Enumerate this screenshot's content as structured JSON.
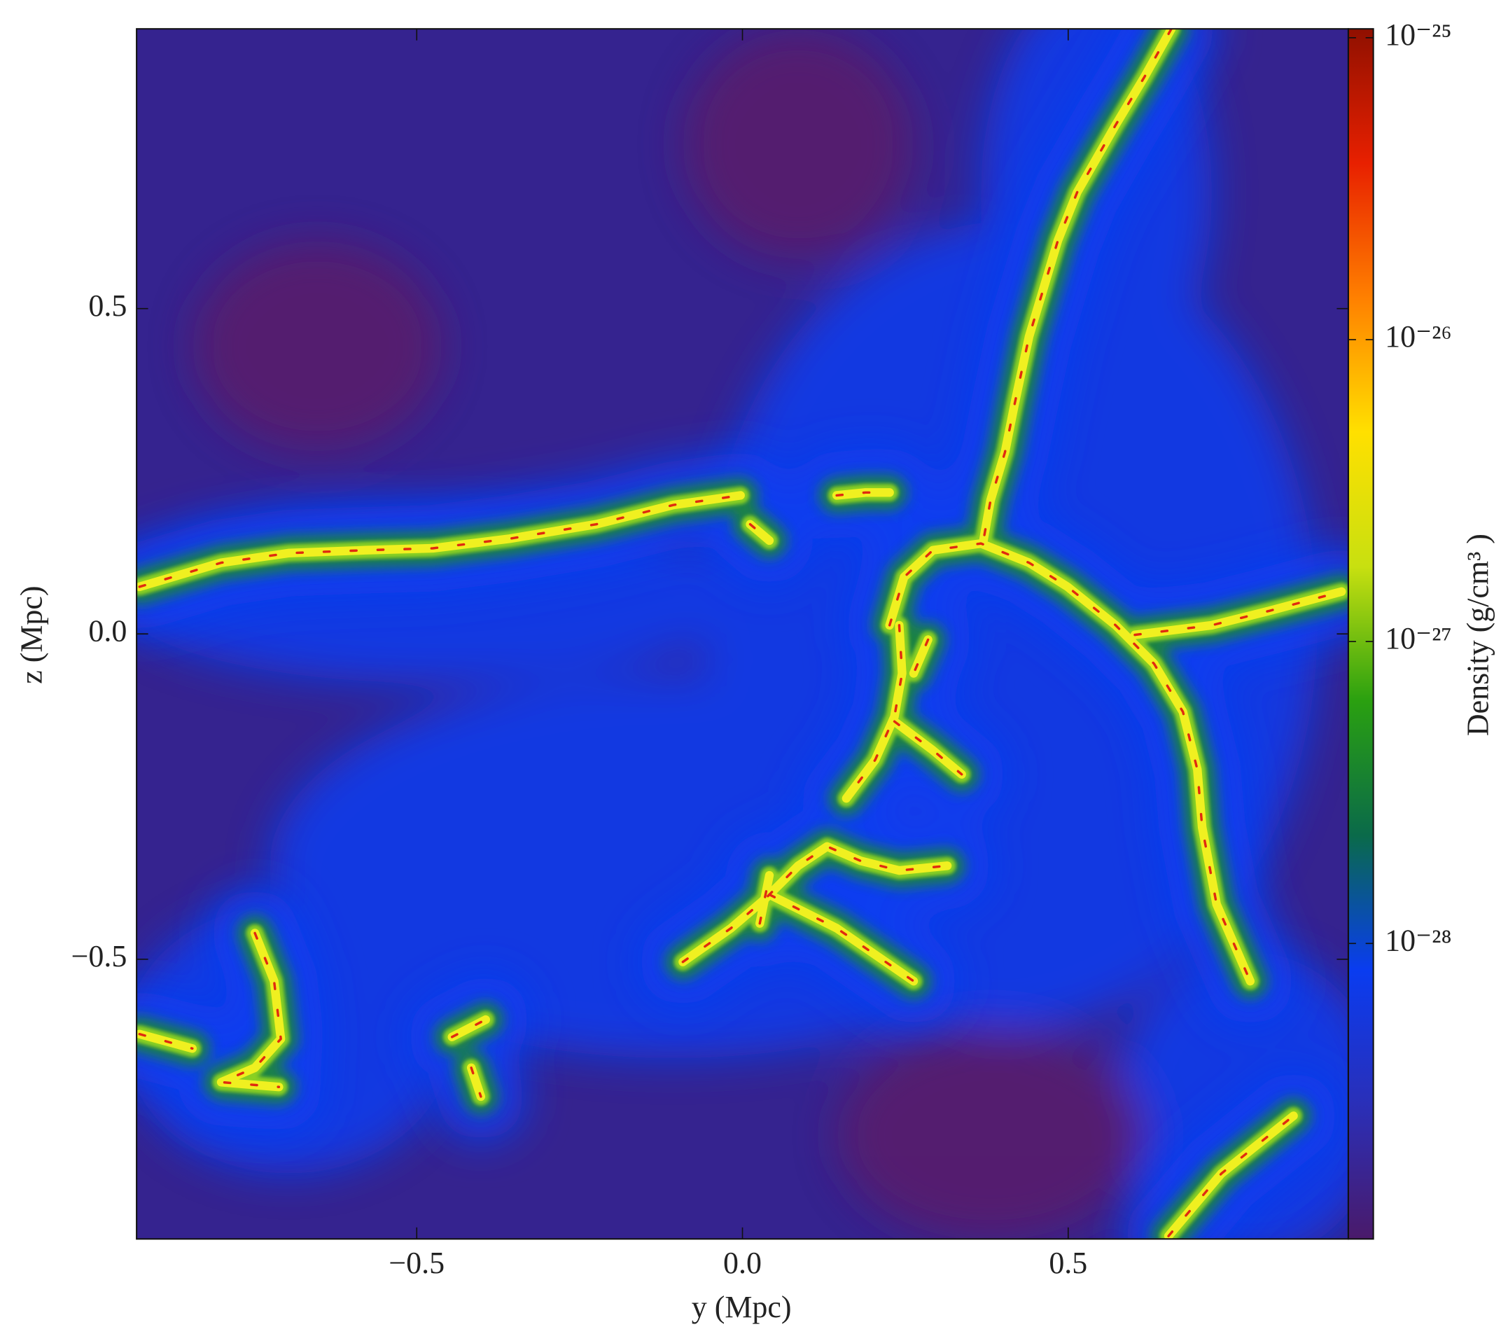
{
  "chart_data": {
    "type": "heatmap",
    "xlabel": "y  (Mpc)",
    "ylabel": "z  (Mpc)",
    "xlim": [
      -0.93,
      0.93
    ],
    "ylim": [
      -0.93,
      0.93
    ],
    "xticks": [
      {
        "value": -0.5,
        "label": "−0.5"
      },
      {
        "value": 0,
        "label": "0.0"
      },
      0.5
    ],
    "yticks": [
      {
        "value": -0.5,
        "label": "−0.5"
      },
      {
        "value": 0,
        "label": "0.0"
      },
      0.5
    ],
    "colorbar": {
      "label": "Density  (g/cm³ )",
      "log": true,
      "clim": [
        1.05e-29,
        1.07e-25
      ],
      "ticks": [
        {
          "value": 1e-28,
          "label": "10⁻²⁸"
        },
        {
          "value": 1e-27,
          "label": "10⁻²⁷"
        },
        {
          "value": 1e-26,
          "label": "10⁻²⁶"
        },
        {
          "value": 1e-25,
          "label": "10⁻²⁵"
        }
      ],
      "colormap": [
        "#4a1a6a",
        "#2a2fb8",
        "#0a3cf0",
        "#0a6a4a",
        "#2aa010",
        "#c8e010",
        "#ffe000",
        "#ff8000",
        "#e82000",
        "#901000"
      ]
    }
  }
}
